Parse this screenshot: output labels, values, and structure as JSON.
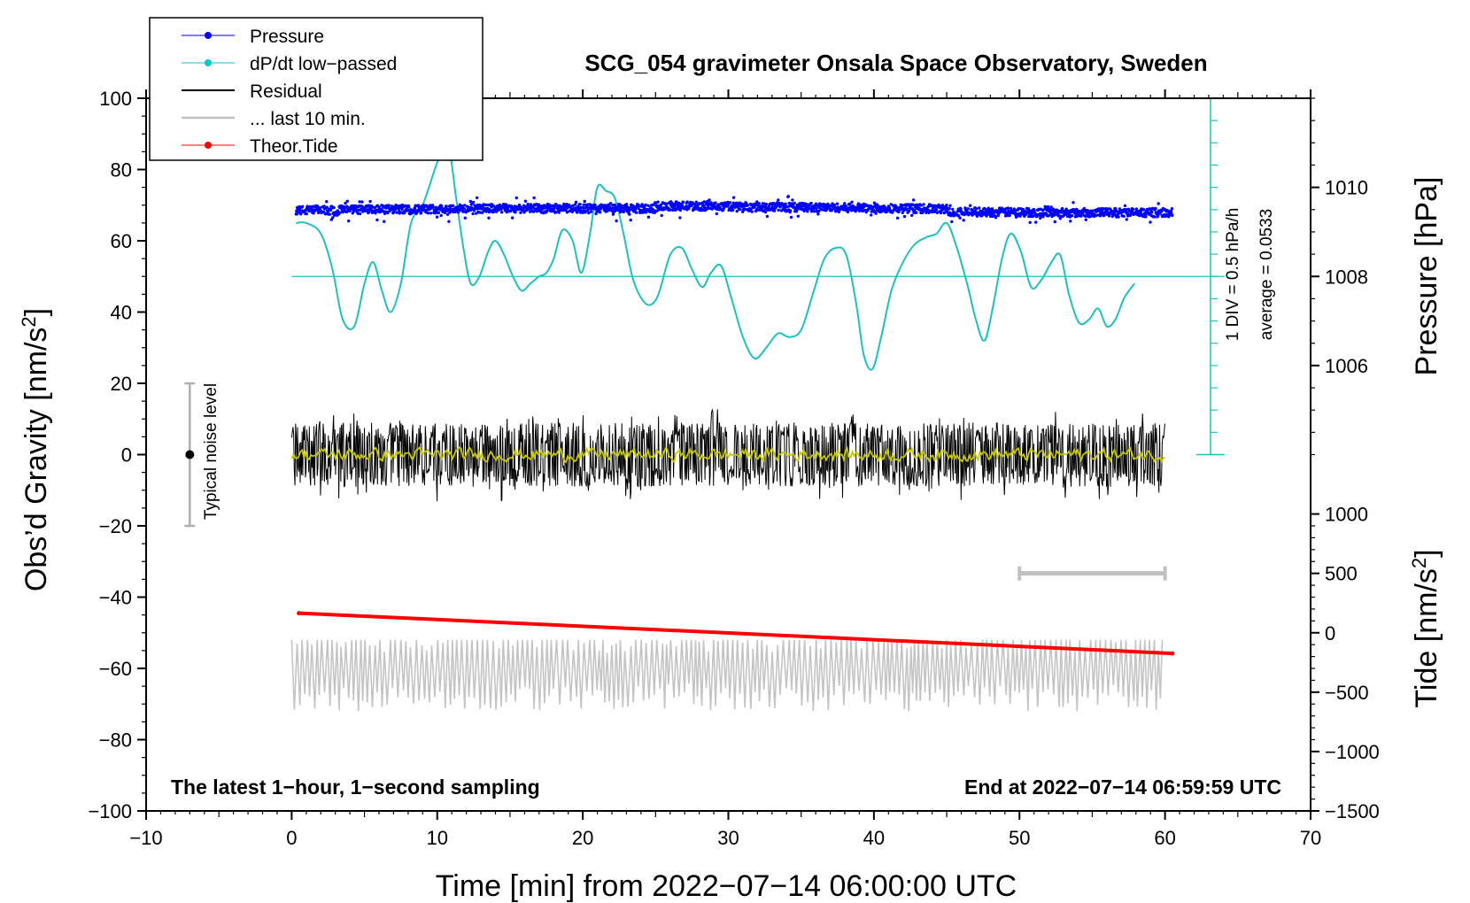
{
  "chart_data": {
    "type": "line",
    "title": "SCG_054 gravimeter Onsala Space Observatory, Sweden",
    "xlabel": "Time [min] from 2022−07−14 06:00:00 UTC",
    "ylabel_left_main": "Obs’d Gravity [nm/s",
    "ylabel_left_sup": "2",
    "ylabel_left_end": "]",
    "ylabel_pressure": "Pressure [hPa]",
    "ylabel_tide_main": "Tide [nm/s",
    "ylabel_tide_sup": "2",
    "ylabel_tide_end": "]",
    "xlim": [
      -10,
      70
    ],
    "ylim": [
      -100,
      100
    ],
    "x_ticks": [
      -10,
      0,
      10,
      20,
      30,
      40,
      50,
      60,
      70
    ],
    "x_tick_labels": [
      "−10",
      "0",
      "10",
      "20",
      "30",
      "40",
      "50",
      "60",
      "70"
    ],
    "y_ticks": [
      100,
      80,
      60,
      40,
      20,
      0,
      -20,
      -40,
      -60,
      -80,
      -100
    ],
    "y_tick_labels": [
      "100",
      "80",
      "60",
      "40",
      "20",
      "0",
      "−20",
      "−40",
      "−60",
      "−80",
      "−100"
    ],
    "pressure_axis": {
      "ticks": [
        1010,
        1008,
        1006
      ],
      "tick_labels": [
        "1010",
        "1008",
        "1006"
      ],
      "gravity_equiv": [
        75,
        50,
        25
      ],
      "div_label": "1 DIV = 0.5 hPa/h",
      "average_label": "average = 0.0533",
      "baseline_gravity": 50
    },
    "tide_axis": {
      "ticks": [
        1000,
        500,
        0,
        -500,
        -1000,
        -1500
      ],
      "tick_labels": [
        "1000",
        "500",
        "0",
        "−500",
        "−1000",
        "−1500"
      ],
      "gravity_equiv": [
        -16.67,
        -33.33,
        -50,
        -66.67,
        -83.33,
        -100
      ]
    },
    "legend": [
      {
        "name": "Pressure",
        "color": "#0000ff",
        "marker": true
      },
      {
        "name": "dP/dt low−passed",
        "color": "#00c8c8",
        "marker": true
      },
      {
        "name": "Residual",
        "color": "#000000",
        "marker": false
      },
      {
        "name": "... last 10 min.",
        "color": "#c0c0c0",
        "marker": false
      },
      {
        "name": "Theor.Tide",
        "color": "#ff0000",
        "marker": true
      }
    ],
    "series": [
      {
        "name": "Pressure",
        "color": "#0000ff",
        "gravity_level": 68.5,
        "scatter": 1.2,
        "x_range": [
          0.3,
          60.5
        ]
      },
      {
        "name": "dP/dt low−passed",
        "color": "#20c0c0",
        "x": [
          0.3,
          1,
          2,
          2.8,
          3.5,
          4.3,
          5,
          5.6,
          6.2,
          6.8,
          7.5,
          8.2,
          9,
          10,
          10.7,
          11.3,
          11.8,
          12.3,
          12.9,
          13.5,
          14,
          14.6,
          15.2,
          15.8,
          16.4,
          17,
          17.5,
          18,
          18.6,
          19.3,
          19.9,
          20.5,
          21,
          21.6,
          22.2,
          22.8,
          23.4,
          24,
          24.6,
          25.2,
          26,
          26.8,
          27.5,
          28.2,
          28.8,
          29.5,
          30.2,
          31,
          31.8,
          32.6,
          33.4,
          34.2,
          35,
          35.8,
          36.6,
          37.4,
          38.1,
          38.8,
          39.3,
          39.9,
          40.5,
          41.2,
          42,
          42.8,
          43.6,
          44.3,
          45,
          45.7,
          46.4,
          47,
          47.6,
          48.2,
          48.8,
          49.4,
          50.1,
          50.8,
          51.5,
          52.2,
          52.8,
          53.4,
          54.1,
          54.8,
          55.4,
          56,
          56.6,
          57.2,
          57.9
        ],
        "y": [
          65,
          65,
          62,
          52,
          38,
          36,
          48,
          54,
          46,
          40,
          48,
          65,
          70,
          82,
          88,
          72,
          58,
          48,
          50,
          57,
          60,
          56,
          50,
          46,
          48,
          50,
          51,
          55,
          63,
          60,
          51,
          62,
          75,
          74,
          72,
          62,
          50,
          44,
          42,
          45,
          56,
          58,
          52,
          47,
          51,
          53,
          44,
          33,
          27,
          30,
          34,
          33,
          35,
          45,
          55,
          58,
          56,
          42,
          28,
          24,
          33,
          46,
          54,
          59,
          61,
          62,
          65,
          58,
          48,
          38,
          32,
          42,
          55,
          62,
          57,
          47,
          49,
          54,
          56,
          45,
          37,
          38,
          41,
          36,
          38,
          44,
          48
        ]
      },
      {
        "name": "Residual",
        "color": "#000000",
        "center": 0,
        "amplitude_range": [
          -14,
          14
        ],
        "x_range": [
          0,
          60
        ]
      },
      {
        "name": "Residual (filtered)",
        "color": "#c8c800",
        "center": 0
      },
      {
        "name": "Theor.Tide",
        "color": "#ff0000",
        "x": [
          0.5,
          60.5
        ],
        "gravity_y": [
          -44.5,
          -55.8
        ]
      },
      {
        "name": "... last 10 min.",
        "color": "#c0c0c0",
        "center_gravity": -60,
        "amplitude_range": [
          -72,
          -52
        ],
        "x_range": [
          0,
          60
        ]
      }
    ],
    "noise_indicator": {
      "label": "Typical noise level",
      "x": -7,
      "center": 0,
      "range": [
        -20,
        20
      ]
    },
    "gray_bar": {
      "x_range": [
        50,
        60
      ],
      "tide_value": 500
    },
    "annotations": {
      "bottom_left": "The latest 1−hour, 1−second sampling",
      "bottom_right": "End at 2022−07−14 06:59:59 UTC"
    }
  }
}
